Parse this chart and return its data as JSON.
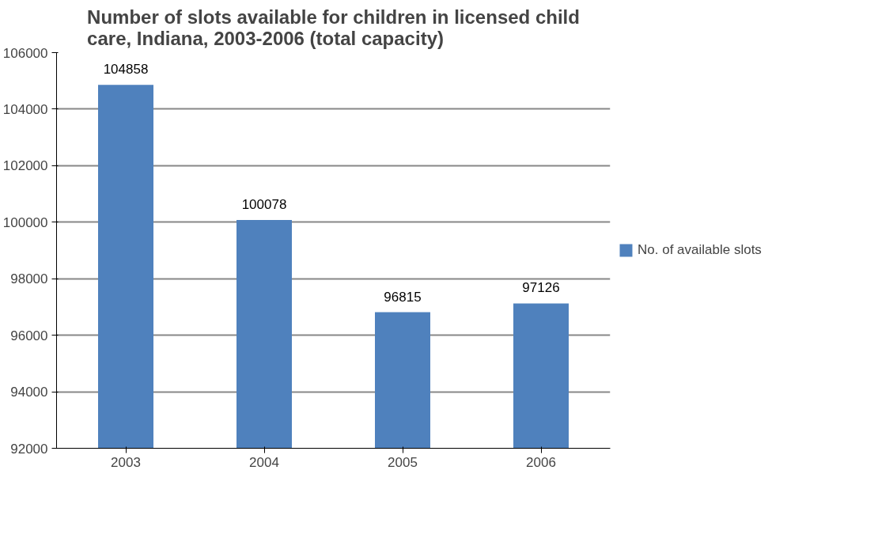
{
  "chart_data": {
    "type": "bar",
    "title": "Number of slots available for children in licensed child care, Indiana, 2003-2006 (total capacity)",
    "categories": [
      "2003",
      "2004",
      "2005",
      "2006"
    ],
    "series": [
      {
        "name": "No. of available slots",
        "color": "#4f81bd",
        "values": [
          104858,
          100078,
          96815,
          97126
        ]
      }
    ],
    "ylim": [
      92000,
      106000
    ],
    "yticks": [
      92000,
      94000,
      96000,
      98000,
      100000,
      102000,
      104000,
      106000
    ],
    "grid": "y",
    "legend": "right",
    "data_labels": true
  }
}
